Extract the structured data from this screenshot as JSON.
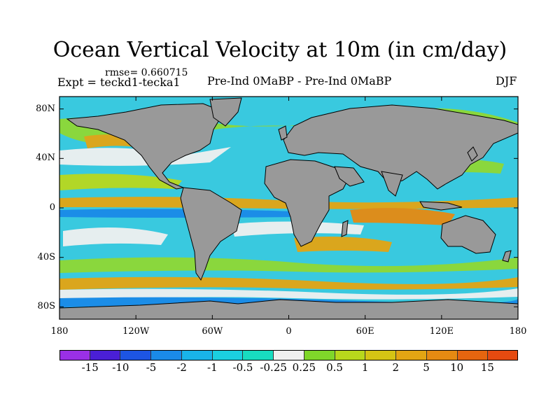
{
  "title": "Ocean Vertical Velocity at 10m (in cm/day)",
  "rmse": "rmse= 0.660715",
  "expt": "Expt = teckd1-tecka1",
  "center_subtitle": "Pre-Ind 0MaBP - Pre-Ind 0MaBP",
  "season": "DJF",
  "map": {
    "ocean_color": "#39c9df",
    "land_color": "#999999",
    "lat_ticks": [
      "80N",
      "40N",
      "0",
      "40S",
      "80S"
    ],
    "lon_ticks": [
      "180",
      "120W",
      "60W",
      "0",
      "60E",
      "120E",
      "180"
    ]
  },
  "colorbar": {
    "colors": [
      "#9a30e6",
      "#4a1fd6",
      "#1d55e3",
      "#1a8ae8",
      "#19b4e9",
      "#1bd0e0",
      "#18dcc0",
      "#f0f0f0",
      "#7fd72a",
      "#b8d81c",
      "#d5c414",
      "#e3a513",
      "#e58a12",
      "#e5650f",
      "#e54a10"
    ],
    "labels": [
      "-15",
      "-10",
      "-5",
      "-2",
      "-1",
      "-0.5",
      "-0.25",
      "0.25",
      "0.5",
      "1",
      "2",
      "5",
      "10",
      "15"
    ]
  }
}
